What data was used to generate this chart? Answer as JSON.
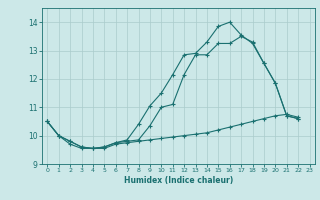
{
  "xlabel": "Humidex (Indice chaleur)",
  "xlim": [
    -0.5,
    23.5
  ],
  "ylim": [
    9.0,
    14.5
  ],
  "yticks": [
    9,
    10,
    11,
    12,
    13,
    14
  ],
  "xticks": [
    0,
    1,
    2,
    3,
    4,
    5,
    6,
    7,
    8,
    9,
    10,
    11,
    12,
    13,
    14,
    15,
    16,
    17,
    18,
    19,
    20,
    21,
    22,
    23
  ],
  "background_color": "#cce8e8",
  "grid_color": "#aacccc",
  "line_color": "#1a7070",
  "line1_x": [
    0,
    1,
    2,
    3,
    4,
    5,
    6,
    7,
    8,
    9,
    10,
    11,
    12,
    13,
    14,
    15,
    16,
    17,
    18,
    19,
    20,
    21,
    22
  ],
  "line1_y": [
    10.5,
    10.0,
    9.8,
    9.6,
    9.55,
    9.6,
    9.75,
    9.8,
    9.85,
    10.35,
    11.0,
    11.1,
    12.15,
    12.85,
    12.85,
    13.25,
    13.25,
    13.5,
    13.3,
    12.55,
    11.85,
    10.7,
    10.6
  ],
  "line2_x": [
    0,
    1,
    2,
    3,
    4,
    5,
    6,
    7,
    8,
    9,
    10,
    11,
    12,
    13,
    14,
    15,
    16,
    17,
    18,
    19,
    20,
    21,
    22
  ],
  "line2_y": [
    10.5,
    10.0,
    9.8,
    9.6,
    9.55,
    9.6,
    9.75,
    9.85,
    10.4,
    11.05,
    11.5,
    12.15,
    12.85,
    12.9,
    13.3,
    13.85,
    14.0,
    13.55,
    13.25,
    12.55,
    11.85,
    10.7,
    10.6
  ],
  "line3_x": [
    0,
    1,
    2,
    3,
    4,
    5,
    6,
    7,
    8,
    9,
    10,
    11,
    12,
    13,
    14,
    15,
    16,
    17,
    18,
    19,
    20,
    21,
    22
  ],
  "line3_y": [
    10.5,
    10.0,
    9.7,
    9.55,
    9.55,
    9.55,
    9.7,
    9.75,
    9.8,
    9.85,
    9.9,
    9.95,
    10.0,
    10.05,
    10.1,
    10.2,
    10.3,
    10.4,
    10.5,
    10.6,
    10.7,
    10.75,
    10.65
  ]
}
